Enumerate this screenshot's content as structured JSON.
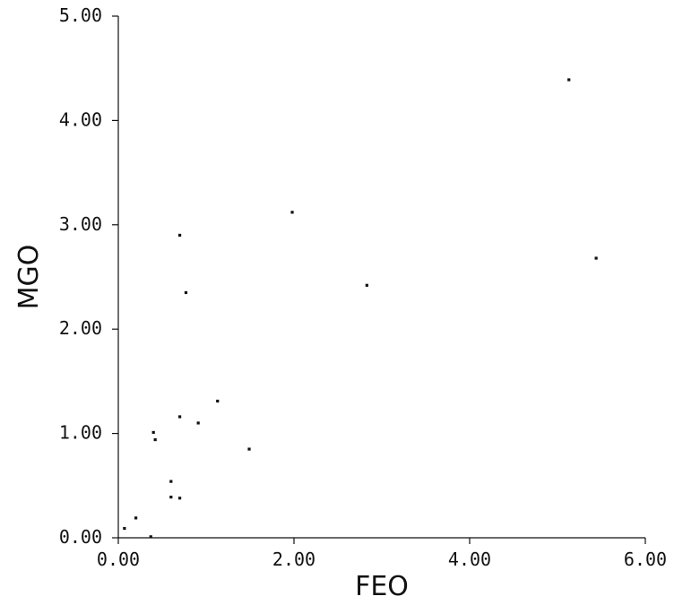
{
  "chart_data": {
    "type": "scatter",
    "title": "",
    "xlabel": "FEO",
    "ylabel": "MGO",
    "xlim": [
      0,
      6
    ],
    "ylim": [
      0,
      5
    ],
    "xticks": [
      "0.00",
      "2.00",
      "4.00",
      "6.00"
    ],
    "yticks": [
      "0.00",
      "1.00",
      "2.00",
      "3.00",
      "4.00",
      "5.00"
    ],
    "grid": false,
    "series": [
      {
        "points": [
          [
            0.07,
            0.09
          ],
          [
            0.2,
            0.19
          ],
          [
            0.37,
            0.01
          ],
          [
            0.4,
            1.01
          ],
          [
            0.42,
            0.94
          ],
          [
            0.6,
            0.54
          ],
          [
            0.6,
            0.39
          ],
          [
            0.7,
            0.38
          ],
          [
            0.7,
            1.16
          ],
          [
            0.7,
            2.9
          ],
          [
            0.77,
            2.35
          ],
          [
            0.91,
            1.1
          ],
          [
            1.13,
            1.31
          ],
          [
            1.49,
            0.85
          ],
          [
            1.98,
            3.12
          ],
          [
            2.83,
            2.42
          ],
          [
            5.13,
            4.39
          ],
          [
            5.44,
            2.68
          ]
        ]
      }
    ]
  }
}
